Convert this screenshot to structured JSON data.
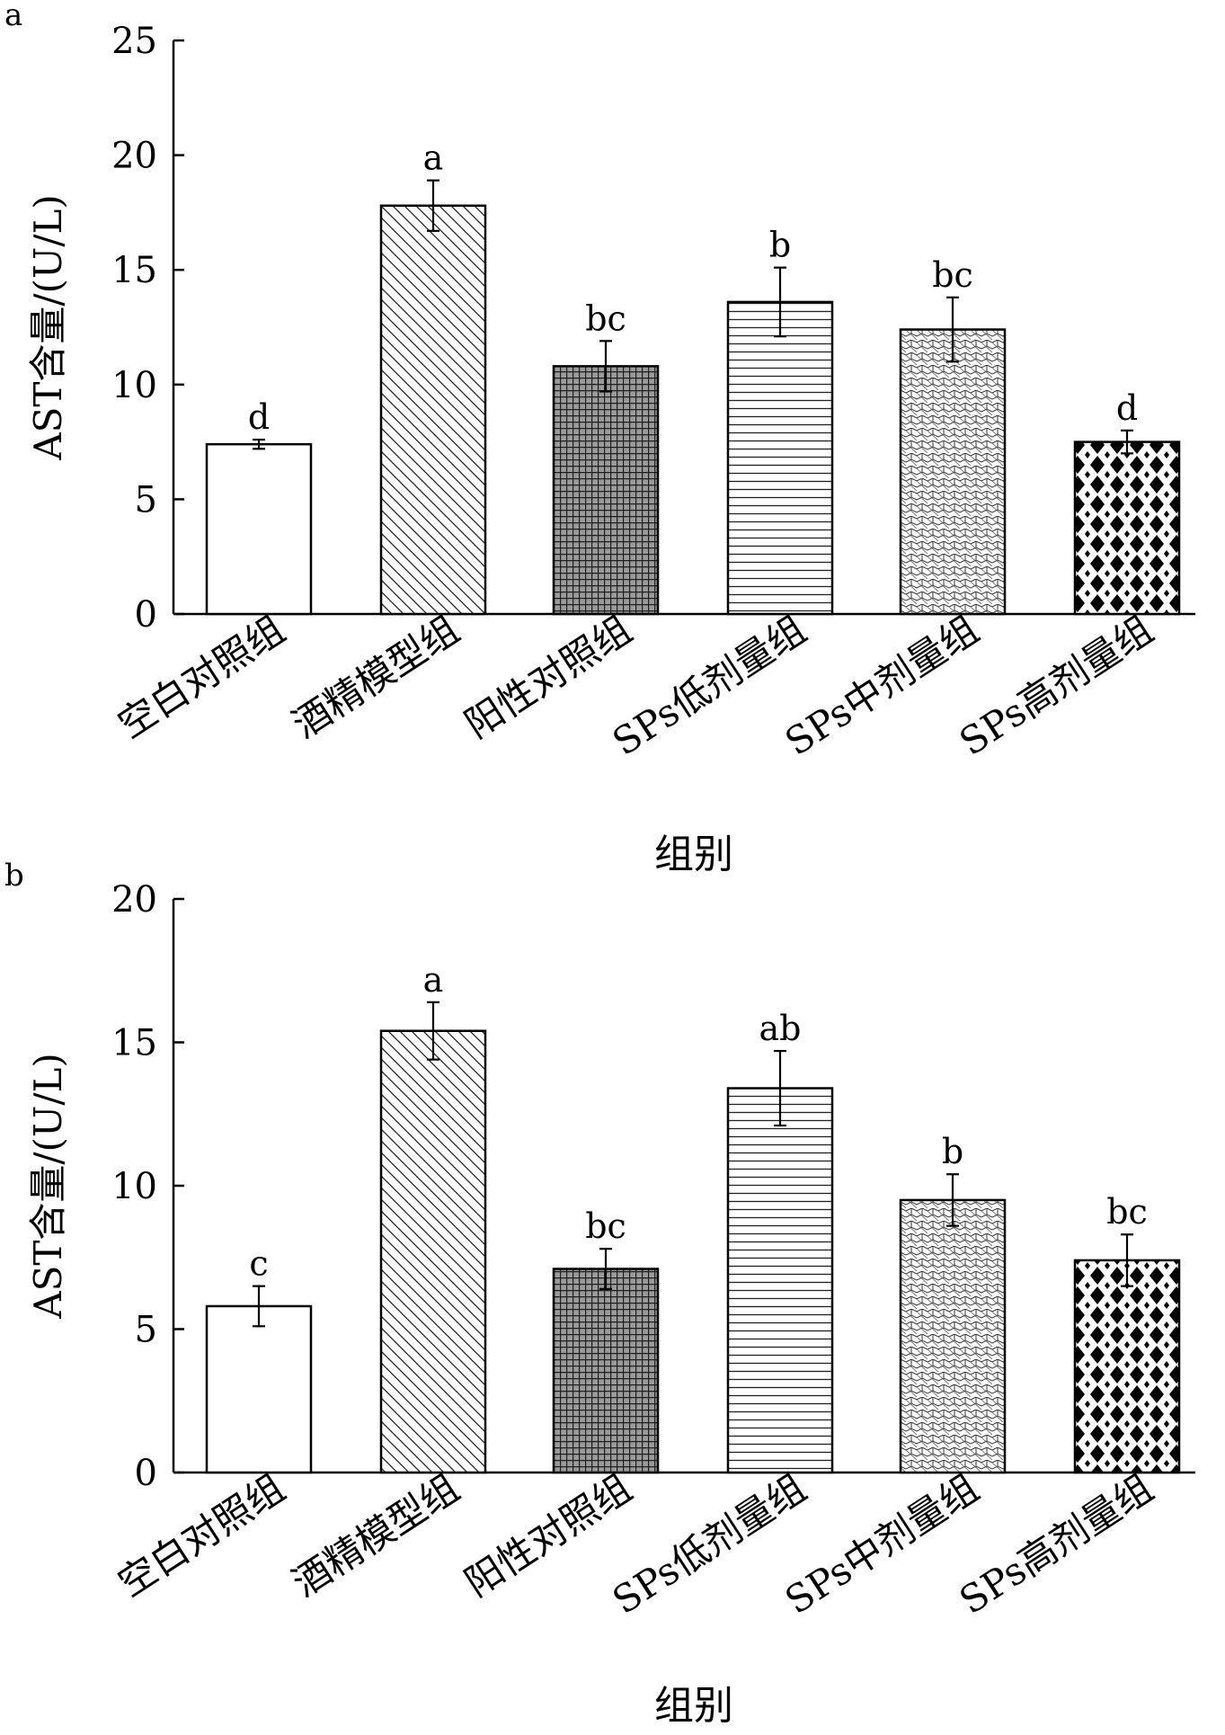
{
  "chart_data": [
    {
      "panel_label": "a",
      "type": "bar",
      "categories": [
        "空白对照组",
        "酒精模型组",
        "阳性对照组",
        "SPs低剂量组",
        "SPs中剂量组",
        "SPs高剂量组"
      ],
      "values": [
        7.4,
        17.8,
        10.8,
        13.6,
        12.4,
        7.5
      ],
      "errors": [
        0.2,
        1.1,
        1.1,
        1.5,
        1.4,
        0.5
      ],
      "significance": [
        "d",
        "a",
        "bc",
        "b",
        "bc",
        "d"
      ],
      "patterns": [
        "blank",
        "diag",
        "grid",
        "hlines",
        "wave",
        "diamond"
      ],
      "ylabel": "AST含量/(U/L)",
      "xlabel": "组别",
      "ylim": [
        0,
        25
      ],
      "yticks": [
        0,
        5,
        10,
        15,
        20,
        25
      ],
      "tick_labels": [
        "0",
        "5",
        "10",
        "15",
        "20",
        "25"
      ]
    },
    {
      "panel_label": "b",
      "type": "bar",
      "categories": [
        "空白对照组",
        "酒精模型组",
        "阳性对照组",
        "SPs低剂量组",
        "SPs中剂量组",
        "SPs高剂量组"
      ],
      "values": [
        5.8,
        15.4,
        7.1,
        13.4,
        9.5,
        7.4
      ],
      "errors": [
        0.7,
        1.0,
        0.7,
        1.3,
        0.9,
        0.9
      ],
      "significance": [
        "c",
        "a",
        "bc",
        "ab",
        "b",
        "bc"
      ],
      "patterns": [
        "blank",
        "diag",
        "grid",
        "hlines",
        "wave",
        "diamond"
      ],
      "ylabel": "AST含量/(U/L)",
      "xlabel": "组别",
      "ylim": [
        0,
        20
      ],
      "yticks": [
        0,
        5,
        10,
        15,
        20
      ],
      "tick_labels": [
        "0",
        "5",
        "10",
        "15",
        "20"
      ]
    }
  ]
}
